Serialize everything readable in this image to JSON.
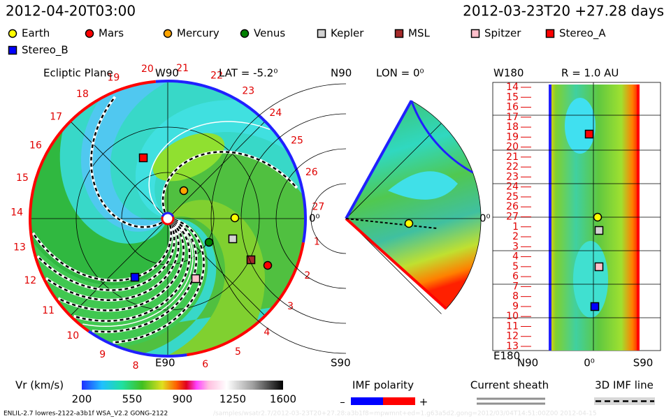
{
  "header": {
    "time": "2012-04-20T03:00",
    "run_info": "2012-03-23T20 +27.28 days"
  },
  "legend": [
    {
      "name": "Earth",
      "color": "#ffff00",
      "shape": "circle"
    },
    {
      "name": "Mars",
      "color": "#ff0000",
      "shape": "circle"
    },
    {
      "name": "Mercury",
      "color": "#ffa500",
      "shape": "circle"
    },
    {
      "name": "Venus",
      "color": "#008000",
      "shape": "circle"
    },
    {
      "name": "Kepler",
      "color": "#d3d3d3",
      "shape": "square"
    },
    {
      "name": "MSL",
      "color": "#a52a2a",
      "shape": "square"
    },
    {
      "name": "Spitzer",
      "color": "#ffc0cb",
      "shape": "square"
    },
    {
      "name": "Stereo_A",
      "color": "#ff0000",
      "shape": "square"
    },
    {
      "name": "Stereo_B",
      "color": "#0000ff",
      "shape": "square"
    }
  ],
  "ecliptic": {
    "title": "Ecliptic Plane",
    "top": "W90",
    "bottom": "E90",
    "lat": "LAT = -5.2⁰",
    "right": "0⁰",
    "carrington": [
      "1",
      "2",
      "3",
      "4",
      "5",
      "6",
      "8",
      "9",
      "10",
      "11",
      "12",
      "13",
      "14",
      "15",
      "16",
      "17",
      "18",
      "19",
      "20",
      "21",
      "22",
      "23",
      "24",
      "25",
      "26",
      "27"
    ]
  },
  "meridional": {
    "top": "N90",
    "lon": "LON = 0⁰",
    "bottom": "S90",
    "right": "0⁰"
  },
  "radial": {
    "title": "R = 1.0 AU",
    "top": "W180",
    "bottom": "E180",
    "x_labels": [
      "N90",
      "0⁰",
      "S90"
    ],
    "rows": [
      "14",
      "15",
      "16",
      "17",
      "18",
      "19",
      "20",
      "21",
      "22",
      "23",
      "24",
      "25",
      "26",
      "27",
      "1",
      "2",
      "3",
      "4",
      "5",
      "6",
      "7",
      "8",
      "9",
      "10",
      "11",
      "12",
      "13"
    ]
  },
  "colorbar": {
    "label": "Vr (km/s)",
    "range": [
      200,
      1600
    ],
    "ticks": [
      200,
      550,
      900,
      1250,
      1600
    ]
  },
  "imf": {
    "title": "IMF polarity",
    "minus": "–",
    "plus": "+"
  },
  "sheath": {
    "title": "Current sheath"
  },
  "imf_line": {
    "title": "3D IMF line"
  },
  "footer": {
    "run": "ENLIL-2.7 lowres-2122-a3b1f WSA_V2.2 GONG-2122",
    "path": "/samples/wsatr2.7/2012-03-23T20+27.28:a3b1f8=mpwmnt+ed=1.g63a5d2.gong=2012/03/04T14:51:00Z00  2012-04-15"
  }
}
